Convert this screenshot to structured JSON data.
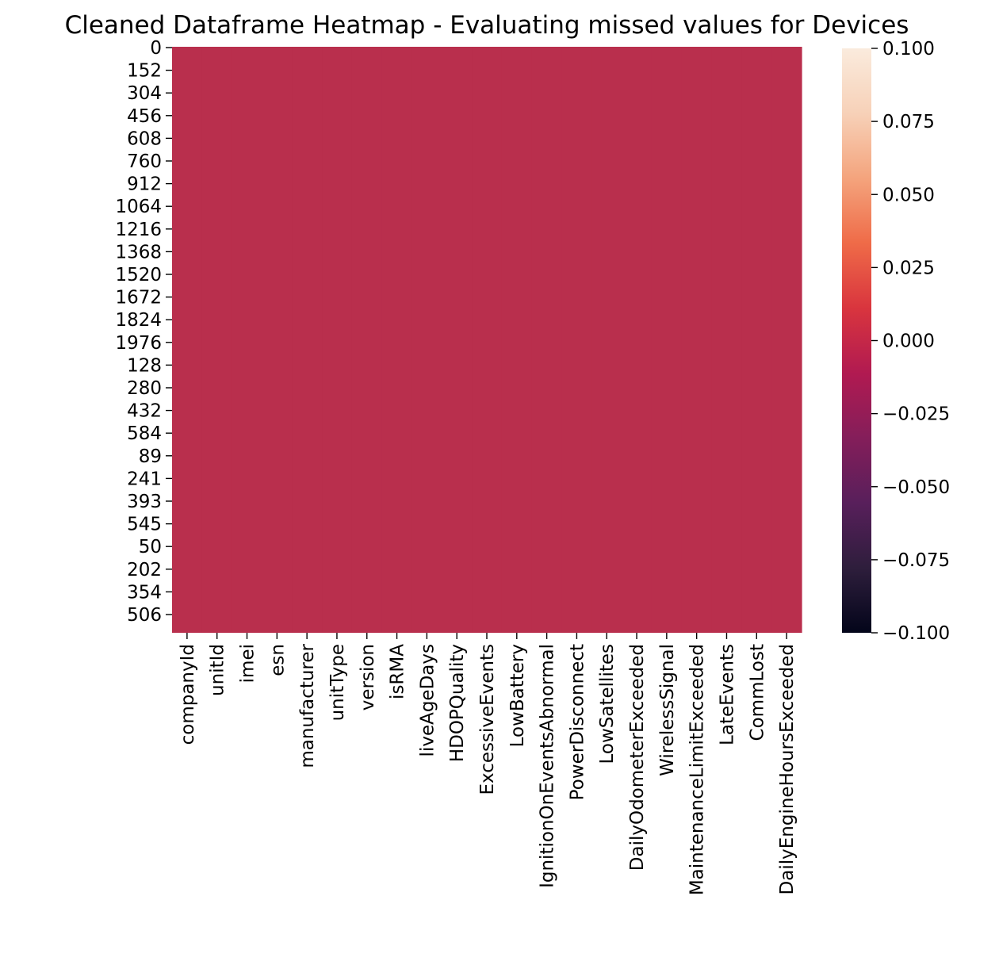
{
  "chart_data": {
    "type": "heatmap",
    "title": "Cleaned Dataframe Heatmap - Evaluating missed values for Devices",
    "xlabel": "",
    "ylabel": "",
    "columns": [
      "companyId",
      "unitId",
      "imei",
      "esn",
      "manufacturer",
      "unitType",
      "version",
      "isRMA",
      "liveAgeDays",
      "HDOPQuality",
      "ExcessiveEvents",
      "LowBattery",
      "IgnitionOnEventsAbnormal",
      "PowerDisconnect",
      "LowSatellites",
      "DailyOdometerExceeded",
      "WirelessSignal",
      "MaintenanceLimitExceeded",
      "LateEvents",
      "CommLost",
      "DailyEngineHoursExceeded"
    ],
    "row_tick_labels": [
      "0",
      "152",
      "304",
      "456",
      "608",
      "760",
      "912",
      "1064",
      "1216",
      "1368",
      "1520",
      "1672",
      "1824",
      "1976",
      "128",
      "280",
      "432",
      "584",
      "89",
      "241",
      "393",
      "545",
      "50",
      "202",
      "354",
      "506"
    ],
    "cell_value": 0,
    "cell_color": "#b92f4d",
    "colorbar": {
      "vmin": -0.1,
      "vmax": 0.1,
      "colormap": "rocket",
      "ticks": [
        "0.100",
        "0.075",
        "0.050",
        "0.025",
        "0.000",
        "−0.025",
        "−0.050",
        "−0.075",
        "−0.100"
      ],
      "stops": [
        "#03051a",
        "#2e1e3c",
        "#581f5b",
        "#841e5a",
        "#b11a51",
        "#d9353e",
        "#ef6b48",
        "#f4a47d",
        "#f7d1b8",
        "#faebdd"
      ]
    },
    "grid": false,
    "legend": "colorbar-right"
  }
}
